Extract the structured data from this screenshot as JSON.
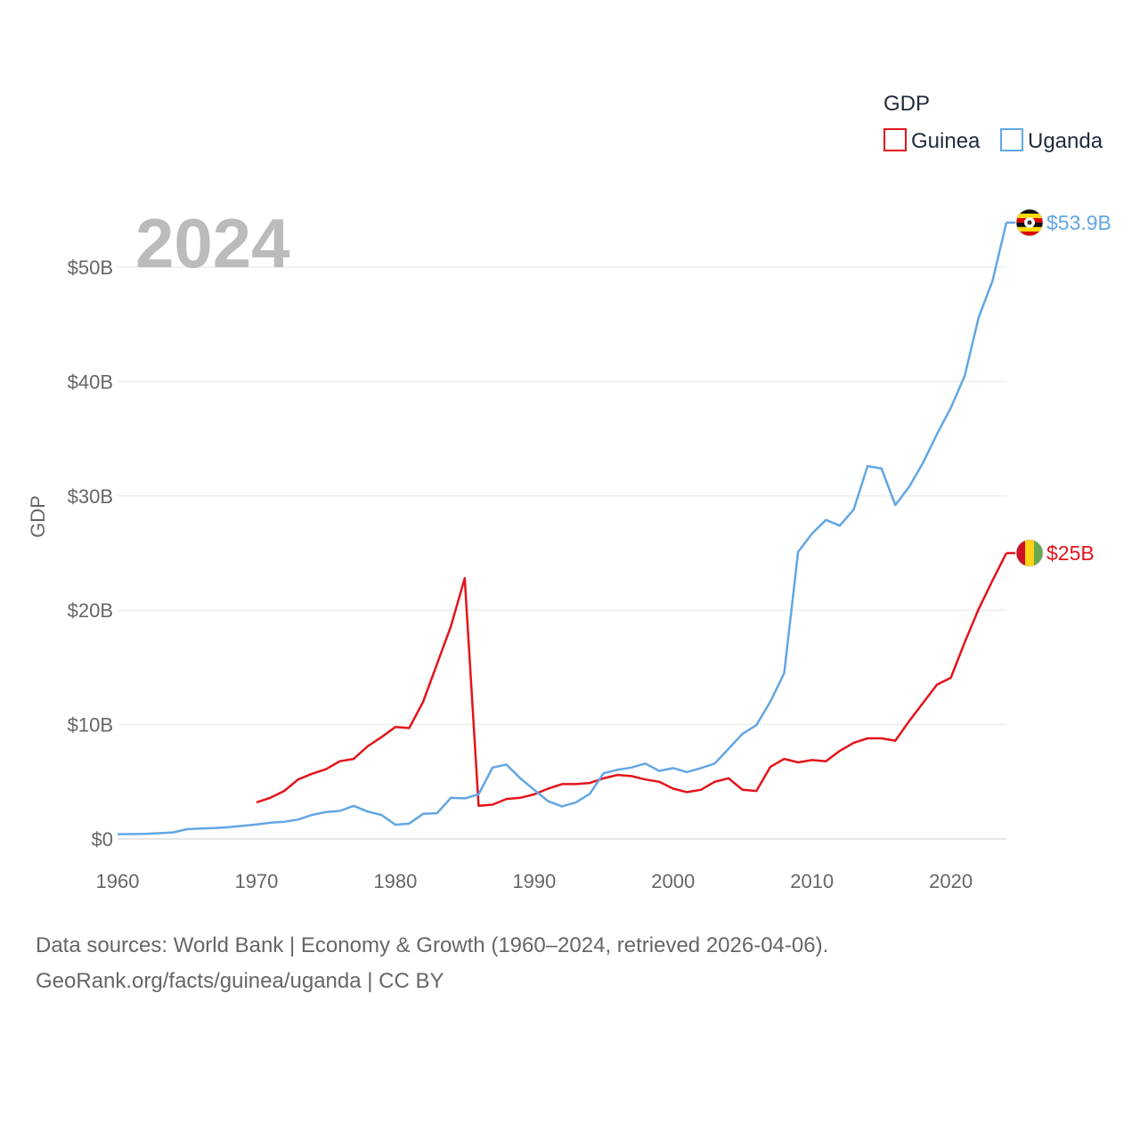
{
  "chart_data": {
    "type": "line",
    "year_label": "2024",
    "ylabel": "GDP",
    "xlim": [
      1960,
      2024
    ],
    "ylim": [
      0,
      55
    ],
    "y_unit": "billion USD",
    "y_ticks": [
      {
        "value": 0,
        "label": "$0"
      },
      {
        "value": 10,
        "label": "$10B"
      },
      {
        "value": 20,
        "label": "$20B"
      },
      {
        "value": 30,
        "label": "$30B"
      },
      {
        "value": 40,
        "label": "$40B"
      },
      {
        "value": 50,
        "label": "$50B"
      }
    ],
    "x_ticks": [
      {
        "value": 1960,
        "label": "1960"
      },
      {
        "value": 1970,
        "label": "1970"
      },
      {
        "value": 1980,
        "label": "1980"
      },
      {
        "value": 1990,
        "label": "1990"
      },
      {
        "value": 2000,
        "label": "2000"
      },
      {
        "value": 2010,
        "label": "2010"
      },
      {
        "value": 2020,
        "label": "2020"
      }
    ],
    "legend": {
      "title": "GDP",
      "position": "top-right"
    },
    "series": [
      {
        "name": "Guinea",
        "color": "#e3141a",
        "end_label": "$25B",
        "flag": "guinea-flag",
        "x": [
          1970,
          1971,
          1972,
          1973,
          1974,
          1975,
          1976,
          1977,
          1978,
          1979,
          1980,
          1981,
          1982,
          1983,
          1984,
          1985,
          1986,
          1987,
          1988,
          1989,
          1990,
          1991,
          1992,
          1993,
          1994,
          1995,
          1996,
          1997,
          1998,
          1999,
          2000,
          2001,
          2002,
          2003,
          2004,
          2005,
          2006,
          2007,
          2008,
          2009,
          2010,
          2011,
          2012,
          2013,
          2014,
          2015,
          2016,
          2017,
          2018,
          2019,
          2020,
          2021,
          2022,
          2023,
          2024
        ],
        "values": [
          3.2,
          3.6,
          4.2,
          5.2,
          5.7,
          6.1,
          6.8,
          7.0,
          8.1,
          8.9,
          9.8,
          9.7,
          12.0,
          15.3,
          18.6,
          22.8,
          2.9,
          3.0,
          3.5,
          3.6,
          3.9,
          4.4,
          4.8,
          4.8,
          4.9,
          5.3,
          5.6,
          5.5,
          5.2,
          5.0,
          4.4,
          4.1,
          4.3,
          5.0,
          5.3,
          4.3,
          4.2,
          6.3,
          7.0,
          6.7,
          6.9,
          6.8,
          7.7,
          8.4,
          8.8,
          8.8,
          8.6,
          10.3,
          11.9,
          13.5,
          14.1,
          17.2,
          20.1,
          22.6,
          25.0
        ]
      },
      {
        "name": "Uganda",
        "color": "#62a6e4",
        "end_label": "$53.9B",
        "flag": "uganda-flag",
        "x": [
          1960,
          1961,
          1962,
          1963,
          1964,
          1965,
          1966,
          1967,
          1968,
          1969,
          1970,
          1971,
          1972,
          1973,
          1974,
          1975,
          1976,
          1977,
          1978,
          1979,
          1980,
          1981,
          1982,
          1983,
          1984,
          1985,
          1986,
          1987,
          1988,
          1989,
          1990,
          1991,
          1992,
          1993,
          1994,
          1995,
          1996,
          1997,
          1998,
          1999,
          2000,
          2001,
          2002,
          2003,
          2004,
          2005,
          2006,
          2007,
          2008,
          2009,
          2010,
          2011,
          2012,
          2013,
          2014,
          2015,
          2016,
          2017,
          2018,
          2019,
          2020,
          2021,
          2022,
          2023,
          2024
        ],
        "values": [
          0.42,
          0.43,
          0.45,
          0.51,
          0.58,
          0.86,
          0.92,
          0.96,
          1.03,
          1.15,
          1.26,
          1.42,
          1.5,
          1.7,
          2.1,
          2.35,
          2.45,
          2.9,
          2.4,
          2.1,
          1.25,
          1.35,
          2.2,
          2.25,
          3.6,
          3.55,
          3.9,
          6.25,
          6.5,
          5.3,
          4.3,
          3.3,
          2.85,
          3.2,
          3.95,
          5.75,
          6.05,
          6.25,
          6.6,
          5.95,
          6.2,
          5.85,
          6.2,
          6.6,
          7.9,
          9.2,
          9.95,
          12.0,
          14.5,
          25.1,
          26.7,
          27.9,
          27.4,
          28.8,
          32.6,
          32.4,
          29.2,
          30.8,
          32.9,
          35.4,
          37.7,
          40.5,
          45.6,
          48.8,
          53.9
        ]
      }
    ]
  },
  "footer": {
    "line1": "Data sources: World Bank | Economy & Growth (1960–2024, retrieved 2026-04-06).",
    "line2": "GeoRank.org/facts/guinea/uganda | CC BY"
  }
}
